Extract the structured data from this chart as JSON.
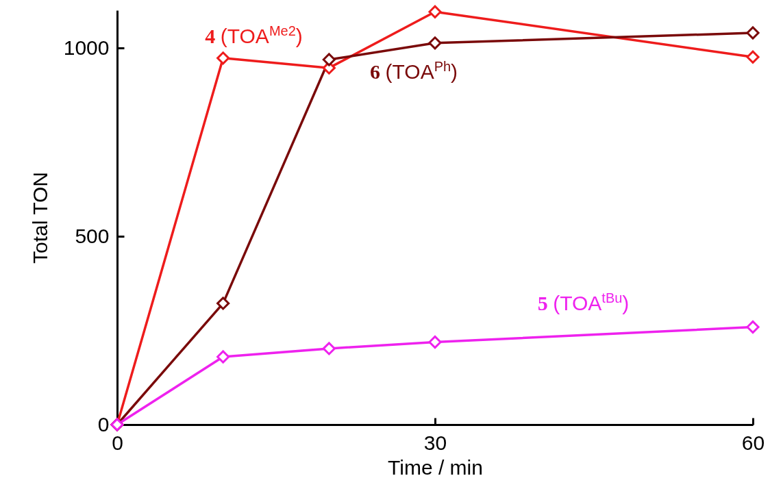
{
  "chart_data": {
    "type": "line",
    "xlabel": "Time / min",
    "ylabel": "Total TON",
    "x": [
      0,
      10,
      20,
      30,
      60
    ],
    "series": [
      {
        "name": "4 (TOA$^{Me2}$)",
        "color": "#ee1c1c",
        "values": [
          0,
          973,
          947,
          1096,
          976
        ]
      },
      {
        "name": "6 (TOA$^{Ph}$)",
        "color": "#7a0a0a",
        "values": [
          0,
          322,
          969,
          1013,
          1040
        ]
      },
      {
        "name": "5 (TOA$^{tBu}$)",
        "color": "#ee22ee",
        "values": [
          0,
          180,
          202,
          219,
          259
        ]
      }
    ],
    "xlim": [
      0,
      60
    ],
    "xticks": [
      0,
      30,
      60
    ],
    "ylim": [
      0,
      1100
    ],
    "yticks": [
      0,
      500,
      1000
    ],
    "grid": false,
    "marker": "diamond",
    "line_style": "solid"
  }
}
